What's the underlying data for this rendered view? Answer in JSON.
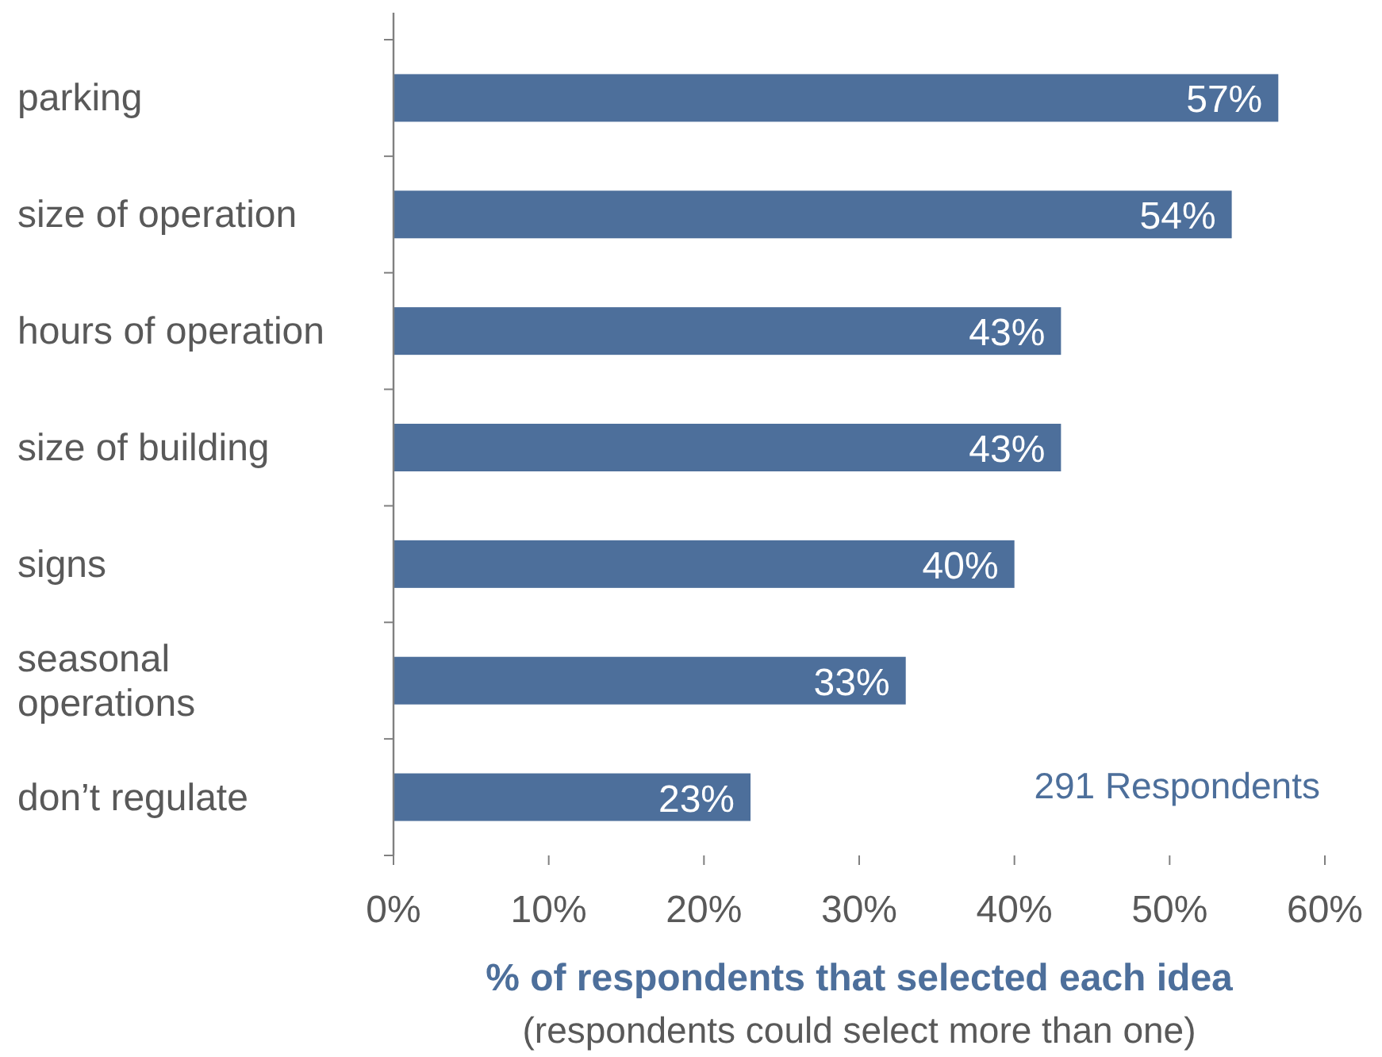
{
  "chart_data": {
    "type": "bar",
    "orientation": "horizontal",
    "categories": [
      "parking",
      "size of operation",
      "hours of operation",
      "size of building",
      "signs",
      "seasonal operations",
      "don’t regulate"
    ],
    "values": [
      57,
      54,
      43,
      43,
      40,
      33,
      23
    ],
    "value_labels": [
      "57%",
      "54%",
      "43%",
      "43%",
      "40%",
      "33%",
      "23%"
    ],
    "color": "#4d6f9b",
    "xlim": [
      0,
      60
    ],
    "xticks": [
      {
        "value": 0,
        "label": "0%"
      },
      {
        "value": 10,
        "label": "10%"
      },
      {
        "value": 20,
        "label": "20%"
      },
      {
        "value": 30,
        "label": "30%"
      },
      {
        "value": 40,
        "label": "40%"
      },
      {
        "value": 50,
        "label": "50%"
      },
      {
        "value": 60,
        "label": "60%"
      }
    ],
    "xlabel": "% of respondents that selected each idea",
    "annotations": [
      "(respondents could select more than one)",
      "291 Respondents"
    ],
    "grid": false
  }
}
